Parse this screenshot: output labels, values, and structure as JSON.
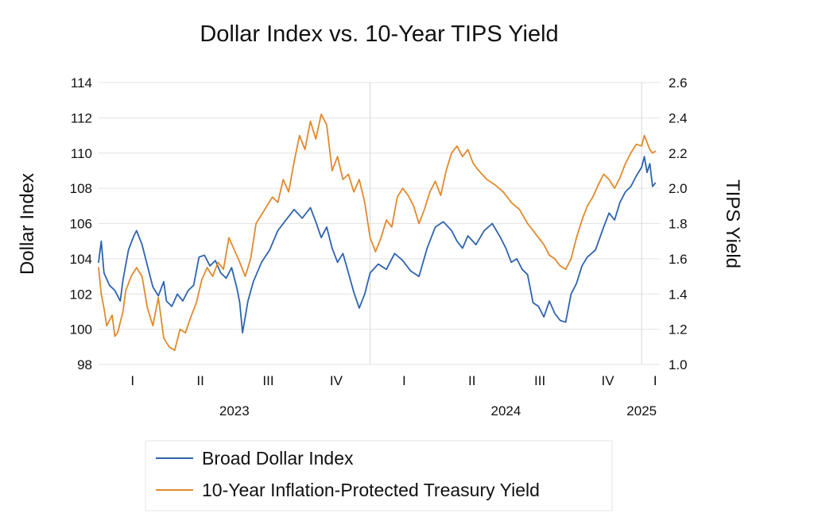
{
  "chart_data": {
    "type": "line",
    "title": "Dollar Index vs. 10-Year TIPS Yield",
    "ylabel": "Dollar Index",
    "y2label": "TIPS Yield",
    "ylim": [
      98,
      114
    ],
    "y2lim": [
      1.0,
      2.6
    ],
    "yticks": [
      "98",
      "100",
      "102",
      "104",
      "106",
      "108",
      "110",
      "112",
      "114"
    ],
    "y2ticks": [
      "1.0",
      "1.2",
      "1.4",
      "1.6",
      "1.8",
      "2.0",
      "2.2",
      "2.4",
      "2.6"
    ],
    "x_domain": [
      2023.0,
      2025.0667
    ],
    "quarter_labels": [
      {
        "t": 2023.125,
        "label": "I"
      },
      {
        "t": 2023.375,
        "label": "II"
      },
      {
        "t": 2023.625,
        "label": "III"
      },
      {
        "t": 2023.875,
        "label": "IV"
      },
      {
        "t": 2024.125,
        "label": "I"
      },
      {
        "t": 2024.375,
        "label": "II"
      },
      {
        "t": 2024.625,
        "label": "III"
      },
      {
        "t": 2024.875,
        "label": "IV"
      },
      {
        "t": 2025.05,
        "label": "I"
      }
    ],
    "year_labels": [
      {
        "t": 2023.5,
        "label": "2023"
      },
      {
        "t": 2024.5,
        "label": "2024"
      },
      {
        "t": 2025.0,
        "label": "2025"
      }
    ],
    "year_dividers": [
      2024.0,
      2025.0
    ],
    "series": [
      {
        "name": "Broad Dollar Index",
        "axis": "left",
        "color": "#2e64b0",
        "x": [
          2023.0,
          2023.01,
          2023.02,
          2023.04,
          2023.06,
          2023.08,
          2023.09,
          2023.11,
          2023.13,
          2023.14,
          2023.16,
          2023.18,
          2023.2,
          2023.22,
          2023.24,
          2023.25,
          2023.27,
          2023.29,
          2023.31,
          2023.33,
          2023.35,
          2023.37,
          2023.39,
          2023.41,
          2023.43,
          2023.45,
          2023.47,
          2023.49,
          2023.51,
          2023.52,
          2023.53,
          2023.55,
          2023.57,
          2023.6,
          2023.63,
          2023.66,
          2023.69,
          2023.72,
          2023.75,
          2023.78,
          2023.8,
          2023.82,
          2023.84,
          2023.86,
          2023.88,
          2023.9,
          2023.92,
          2023.94,
          2023.96,
          2023.98,
          2024.0,
          2024.03,
          2024.06,
          2024.09,
          2024.12,
          2024.15,
          2024.18,
          2024.21,
          2024.24,
          2024.27,
          2024.3,
          2024.32,
          2024.34,
          2024.36,
          2024.39,
          2024.42,
          2024.45,
          2024.48,
          2024.5,
          2024.52,
          2024.54,
          2024.56,
          2024.58,
          2024.6,
          2024.62,
          2024.64,
          2024.66,
          2024.68,
          2024.7,
          2024.72,
          2024.74,
          2024.76,
          2024.78,
          2024.8,
          2024.83,
          2024.86,
          2024.88,
          2024.9,
          2024.92,
          2024.94,
          2024.96,
          2024.98,
          2025.0,
          2025.01,
          2025.02,
          2025.03,
          2025.04,
          2025.05
        ],
        "values": [
          103.8,
          105.0,
          103.2,
          102.5,
          102.2,
          101.6,
          102.8,
          104.5,
          105.3,
          105.6,
          104.8,
          103.6,
          102.4,
          101.9,
          102.7,
          101.6,
          101.3,
          102.0,
          101.6,
          102.2,
          102.5,
          104.1,
          104.2,
          103.6,
          103.9,
          103.2,
          102.9,
          103.5,
          102.3,
          101.5,
          99.8,
          101.6,
          102.7,
          103.8,
          104.5,
          105.6,
          106.2,
          106.8,
          106.3,
          106.9,
          106.1,
          105.2,
          105.8,
          104.6,
          103.8,
          104.3,
          103.2,
          102.1,
          101.2,
          102.0,
          103.2,
          103.7,
          103.4,
          104.3,
          103.9,
          103.3,
          103.0,
          104.6,
          105.8,
          106.1,
          105.6,
          105.0,
          104.6,
          105.3,
          104.8,
          105.6,
          106.0,
          105.2,
          104.6,
          103.8,
          104.0,
          103.4,
          103.1,
          101.5,
          101.3,
          100.7,
          101.6,
          100.9,
          100.5,
          100.4,
          102.0,
          102.6,
          103.6,
          104.1,
          104.5,
          105.8,
          106.6,
          106.2,
          107.2,
          107.8,
          108.1,
          108.7,
          109.2,
          109.8,
          108.9,
          109.4,
          108.1,
          108.3
        ]
      },
      {
        "name": "10-Year Inflation-Protected Treasury Yield",
        "axis": "right",
        "color": "#e08a2c",
        "x": [
          2023.0,
          2023.01,
          2023.02,
          2023.03,
          2023.05,
          2023.06,
          2023.07,
          2023.09,
          2023.1,
          2023.12,
          2023.14,
          2023.16,
          2023.18,
          2023.2,
          2023.22,
          2023.24,
          2023.26,
          2023.28,
          2023.3,
          2023.32,
          2023.34,
          2023.36,
          2023.38,
          2023.4,
          2023.42,
          2023.44,
          2023.46,
          2023.48,
          2023.5,
          2023.52,
          2023.54,
          2023.56,
          2023.58,
          2023.6,
          2023.62,
          2023.64,
          2023.66,
          2023.68,
          2023.7,
          2023.72,
          2023.74,
          2023.76,
          2023.78,
          2023.8,
          2023.82,
          2023.84,
          2023.86,
          2023.88,
          2023.9,
          2023.92,
          2023.94,
          2023.96,
          2023.98,
          2024.0,
          2024.02,
          2024.04,
          2024.06,
          2024.08,
          2024.1,
          2024.12,
          2024.14,
          2024.16,
          2024.18,
          2024.2,
          2024.22,
          2024.24,
          2024.26,
          2024.28,
          2024.3,
          2024.32,
          2024.34,
          2024.36,
          2024.38,
          2024.4,
          2024.43,
          2024.46,
          2024.49,
          2024.52,
          2024.55,
          2024.58,
          2024.61,
          2024.64,
          2024.66,
          2024.68,
          2024.7,
          2024.72,
          2024.74,
          2024.76,
          2024.78,
          2024.8,
          2024.82,
          2024.84,
          2024.86,
          2024.88,
          2024.9,
          2024.92,
          2024.94,
          2024.96,
          2024.98,
          2025.0,
          2025.01,
          2025.02,
          2025.03,
          2025.04,
          2025.05
        ],
        "values": [
          1.55,
          1.4,
          1.32,
          1.22,
          1.28,
          1.16,
          1.18,
          1.3,
          1.42,
          1.5,
          1.55,
          1.5,
          1.32,
          1.22,
          1.38,
          1.15,
          1.1,
          1.08,
          1.2,
          1.18,
          1.27,
          1.35,
          1.48,
          1.55,
          1.5,
          1.58,
          1.54,
          1.72,
          1.65,
          1.58,
          1.5,
          1.6,
          1.8,
          1.85,
          1.9,
          1.95,
          1.92,
          2.05,
          1.98,
          2.15,
          2.3,
          2.22,
          2.38,
          2.28,
          2.42,
          2.36,
          2.1,
          2.18,
          2.05,
          2.08,
          1.98,
          2.05,
          1.92,
          1.72,
          1.64,
          1.72,
          1.82,
          1.78,
          1.95,
          2.0,
          1.96,
          1.9,
          1.8,
          1.88,
          1.98,
          2.04,
          1.96,
          2.1,
          2.2,
          2.24,
          2.18,
          2.22,
          2.14,
          2.1,
          2.05,
          2.02,
          1.98,
          1.92,
          1.88,
          1.8,
          1.74,
          1.68,
          1.62,
          1.6,
          1.56,
          1.54,
          1.6,
          1.72,
          1.82,
          1.9,
          1.95,
          2.02,
          2.08,
          2.05,
          2.0,
          2.06,
          2.14,
          2.2,
          2.25,
          2.24,
          2.3,
          2.26,
          2.22,
          2.2,
          2.21
        ]
      }
    ]
  }
}
